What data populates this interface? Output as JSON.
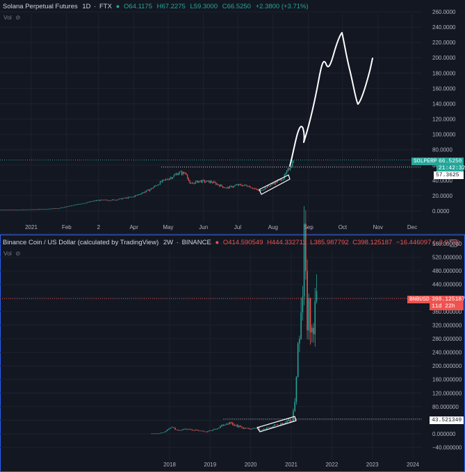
{
  "top_header": {
    "symbol": "Solana Perpetual Futures",
    "interval": "1D",
    "exchange": "FTX",
    "open": "O64.1175",
    "high": "H67.2275",
    "low": "L59.3000",
    "close": "C66.5250",
    "change": "+2.3800 (+3.71%)",
    "vol_label": "Vol"
  },
  "bottom_header": {
    "symbol": "Binance Coin / US Dollar (calculated by TradingView)",
    "interval": "2W",
    "exchange": "BINANCE",
    "open": "O414.590549",
    "high": "H444.332711",
    "low": "L385.987792",
    "close": "C398.125187",
    "change": "−16.446097 (−3.97%)",
    "vol_label": "Vol"
  },
  "top_tags": {
    "symbol": "SOLPERP",
    "price": "66.5250",
    "countdown": "21:42:32",
    "line_price": "57.3625"
  },
  "bottom_tags": {
    "symbol": "BNBUSD",
    "price": "398.125187",
    "countdown": "11d 22h",
    "line_price": "43.521349"
  },
  "colors": {
    "background": "#131722",
    "up": "#26a69a",
    "down": "#ef5350",
    "axis_text": "#b2b5be",
    "panel_border": "#2962ff",
    "drawing": "#ffffff"
  },
  "chart_data": [
    {
      "type": "candlestick",
      "title": "Solana Perpetual Futures",
      "y_ticks": [
        "0.0000",
        "20.0000",
        "40.0000",
        "60.0000",
        "80.0000",
        "100.0000",
        "120.0000",
        "140.0000",
        "160.0000",
        "180.0000",
        "200.0000",
        "220.0000",
        "240.0000",
        "260.0000"
      ],
      "ylim": [
        -5,
        265
      ],
      "x_ticks": [
        "2021",
        "Feb",
        "2",
        "Apr",
        "May",
        "Jun",
        "Jul",
        "Aug",
        "Sep",
        "Oct",
        "Nov",
        "Dec"
      ],
      "x_tick_dates": [
        "2021-01-01",
        "2021-02-01",
        "2021-03-01",
        "2021-04-01",
        "2021-05-01",
        "2021-06-01",
        "2021-07-01",
        "2021-08-01",
        "2021-09-01",
        "2021-10-01",
        "2021-11-01",
        "2021-12-01"
      ],
      "price_points": [
        [
          "2020-09-15",
          3.0
        ],
        [
          "2020-10-15",
          2.2
        ],
        [
          "2020-11-15",
          1.9
        ],
        [
          "2020-12-15",
          1.7
        ],
        [
          "2021-01-05",
          2.2
        ],
        [
          "2021-01-25",
          3.6
        ],
        [
          "2021-02-10",
          8.5
        ],
        [
          "2021-02-28",
          14.0
        ],
        [
          "2021-03-15",
          14.5
        ],
        [
          "2021-03-31",
          18.5
        ],
        [
          "2021-04-15",
          28.0
        ],
        [
          "2021-04-25",
          38.0
        ],
        [
          "2021-05-05",
          45.0
        ],
        [
          "2021-05-10",
          50.0
        ],
        [
          "2021-05-17",
          49.0
        ],
        [
          "2021-05-20",
          35.0
        ],
        [
          "2021-05-28",
          39.0
        ],
        [
          "2021-06-08",
          38.0
        ],
        [
          "2021-06-21",
          30.0
        ],
        [
          "2021-07-01",
          34.0
        ],
        [
          "2021-07-10",
          33.0
        ],
        [
          "2021-07-20",
          26.0
        ],
        [
          "2021-08-01",
          36.0
        ],
        [
          "2021-08-10",
          43.0
        ],
        [
          "2021-08-16",
          58.0
        ],
        [
          "2021-08-19",
          66.5
        ]
      ],
      "last_price": 66.525,
      "horizontal_line": 57.3625,
      "drawing": "hand-drawn projection to about 230 in October"
    },
    {
      "type": "candlestick",
      "title": "Binance Coin / US Dollar (calculated by TradingView)",
      "y_ticks": [
        "−40.000000",
        "0.000000",
        "40.000000",
        "80.000000",
        "120.000000",
        "160.000000",
        "200.000000",
        "240.000000",
        "280.000000",
        "320.000000",
        "360.000000",
        "400.000000",
        "440.000000",
        "480.000000",
        "520.000000",
        "560.000000"
      ],
      "ylim": [
        -60,
        565
      ],
      "x_ticks": [
        "2018",
        "2019",
        "2020",
        "2021",
        "2022",
        "2023",
        "2024"
      ],
      "x_tick_dates": [
        "2018-01-01",
        "2019-01-01",
        "2020-01-01",
        "2021-01-01",
        "2022-01-01",
        "2023-01-01",
        "2024-01-01"
      ],
      "price_points": [
        [
          "2017-08-01",
          1.0
        ],
        [
          "2017-10-01",
          1.5
        ],
        [
          "2017-12-01",
          8.0
        ],
        [
          "2018-01-15",
          20.0
        ],
        [
          "2018-03-01",
          11.0
        ],
        [
          "2018-06-01",
          14.0
        ],
        [
          "2018-09-01",
          10.0
        ],
        [
          "2018-12-01",
          6.0
        ],
        [
          "2019-02-15",
          14.0
        ],
        [
          "2019-05-01",
          28.0
        ],
        [
          "2019-06-20",
          33.0
        ],
        [
          "2019-08-15",
          26.0
        ],
        [
          "2019-10-15",
          18.0
        ],
        [
          "2019-12-20",
          13.5
        ],
        [
          "2020-03-10",
          17.0
        ],
        [
          "2020-03-20",
          10.0
        ],
        [
          "2020-06-01",
          17.0
        ],
        [
          "2020-08-15",
          25.0
        ],
        [
          "2020-10-15",
          30.0
        ],
        [
          "2020-12-20",
          37.0
        ],
        [
          "2021-01-15",
          45.0
        ],
        [
          "2021-02-10",
          130.0
        ],
        [
          "2021-02-25",
          250.0
        ],
        [
          "2021-03-20",
          270.0
        ],
        [
          "2021-04-10",
          400.0
        ],
        [
          "2021-05-01",
          600.0
        ],
        [
          "2021-05-20",
          330.0
        ],
        [
          "2021-06-10",
          350.0
        ],
        [
          "2021-07-01",
          300.0
        ],
        [
          "2021-07-20",
          310.0
        ],
        [
          "2021-08-01",
          340.0
        ],
        [
          "2021-08-18",
          398.1
        ]
      ],
      "last_price": 398.125187,
      "horizontal_line": 43.521349
    }
  ]
}
